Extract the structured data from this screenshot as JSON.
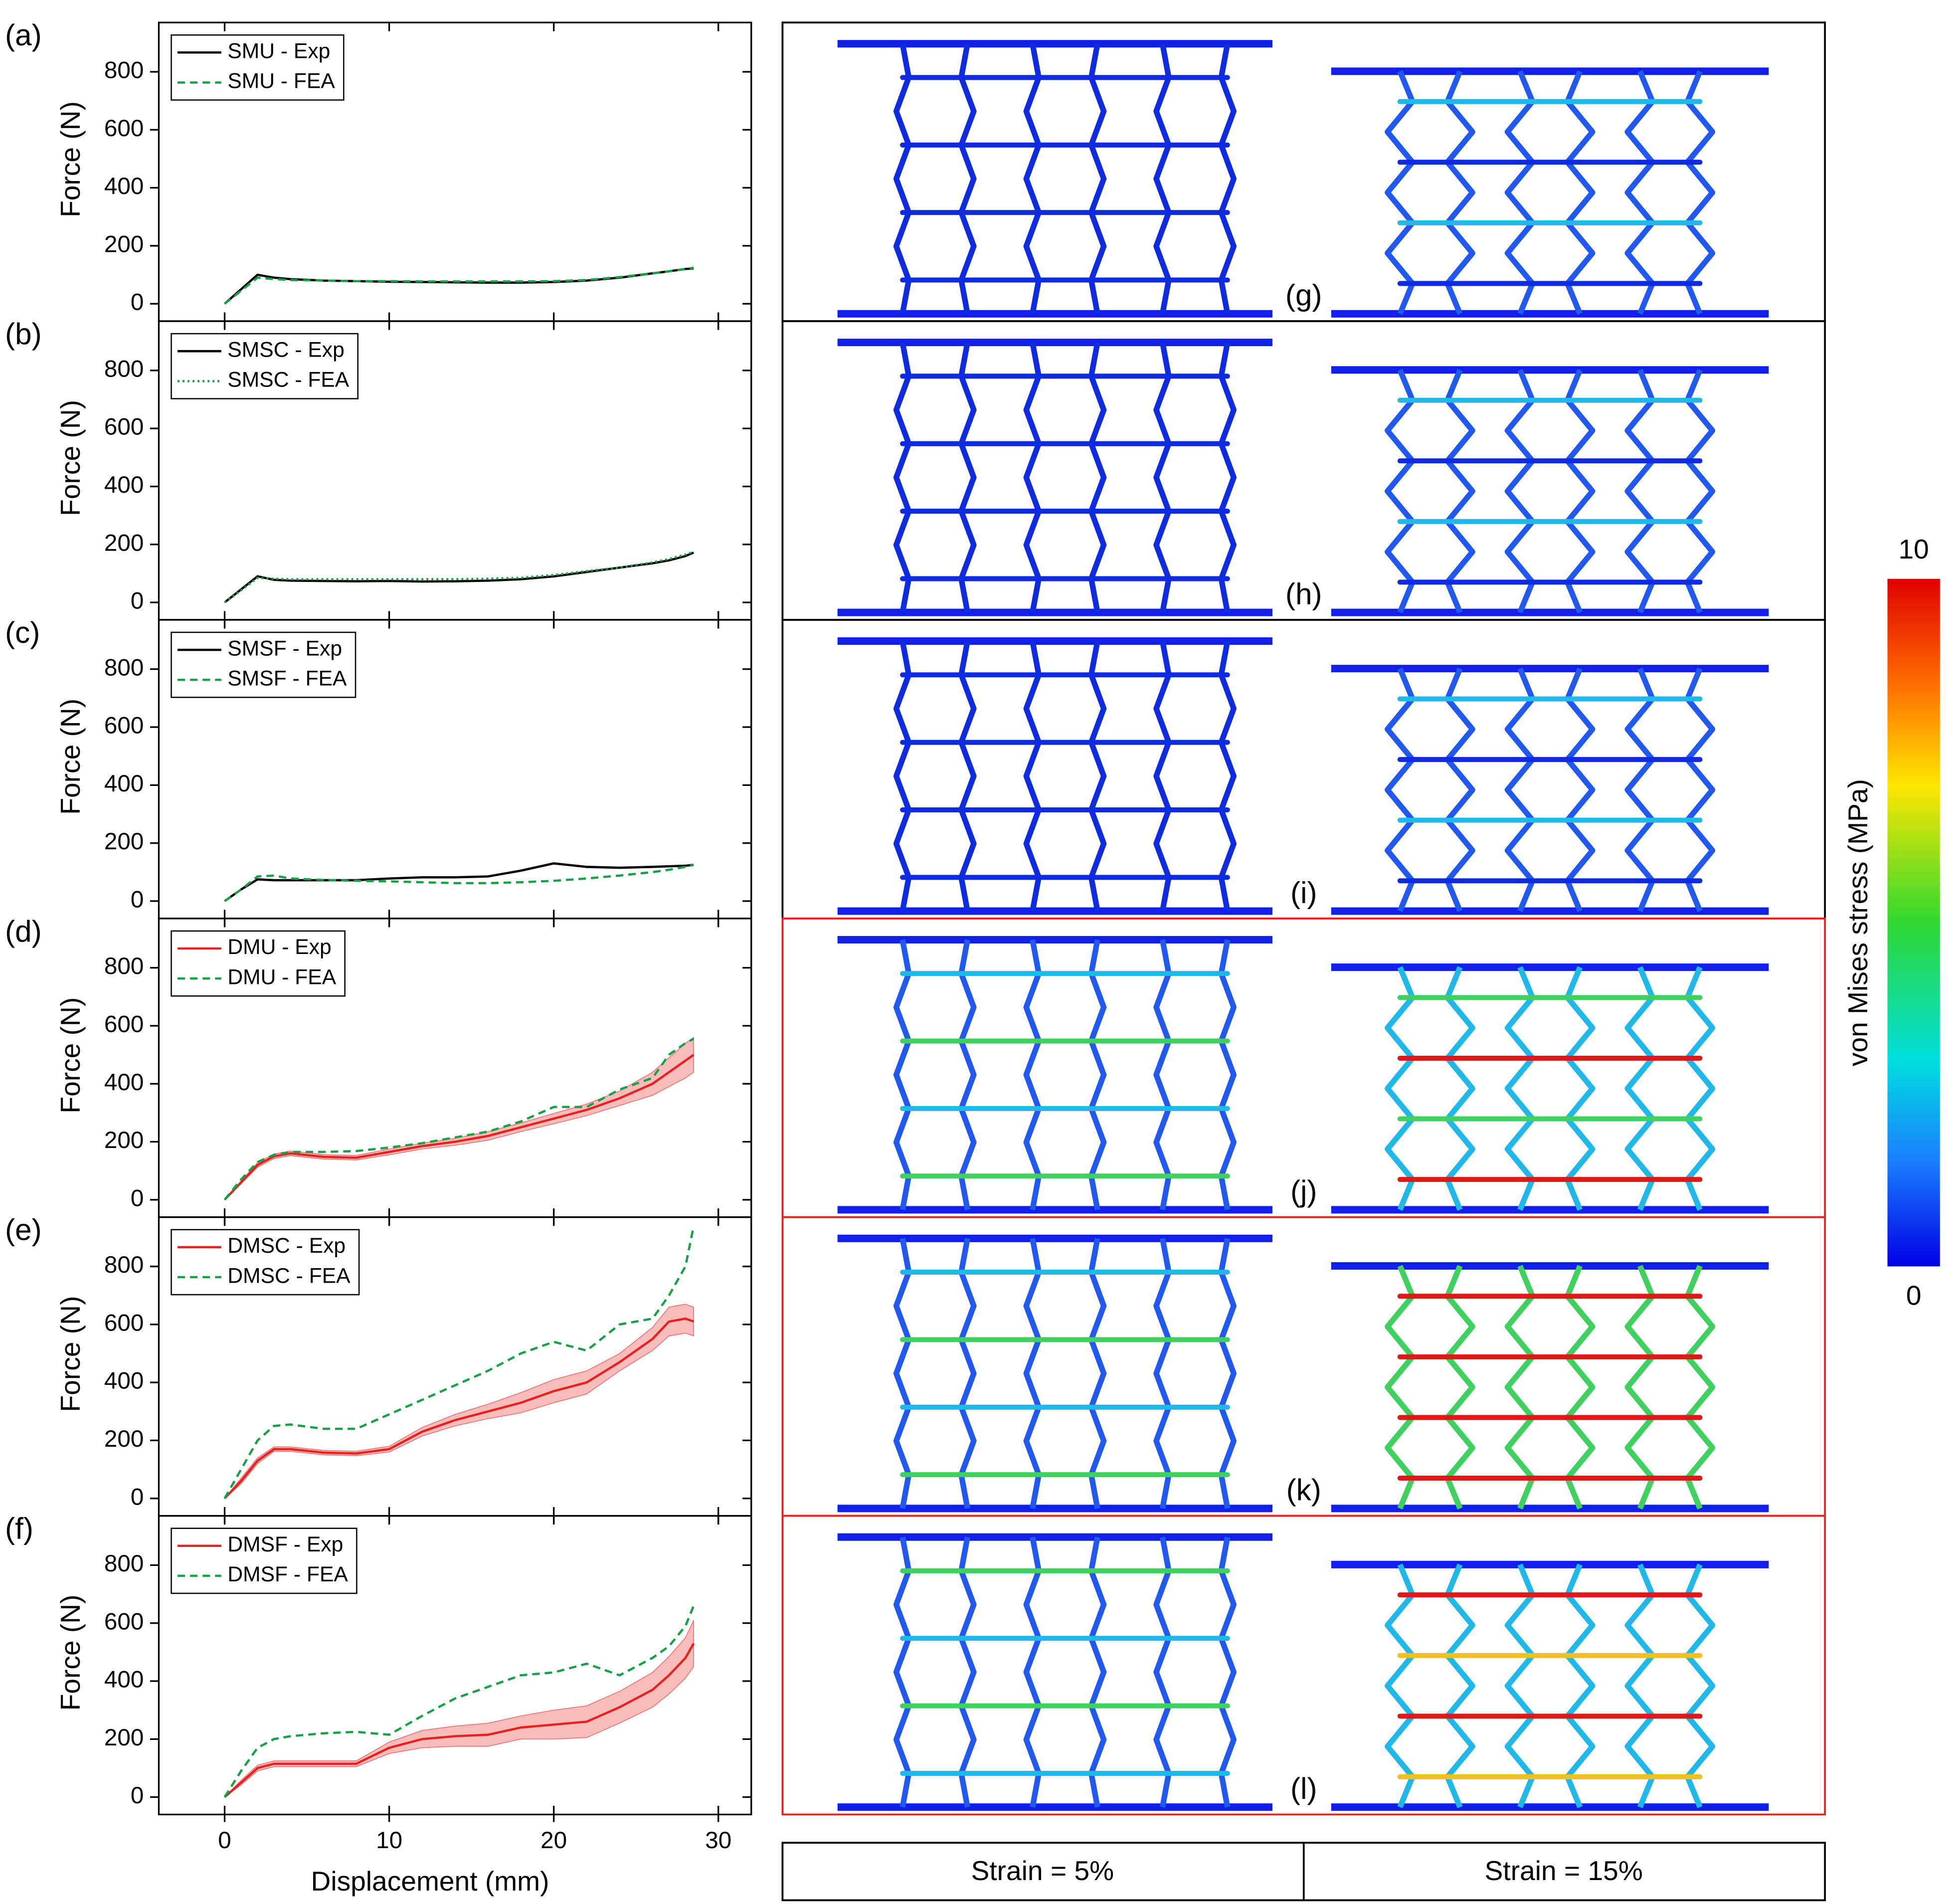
{
  "chart_data": [
    {
      "type": "line",
      "label": "(a)",
      "ylabel": "Force (N)",
      "xlim": [
        -4,
        32
      ],
      "ylim": [
        -60,
        970
      ],
      "xticks": [
        0,
        10,
        20,
        30
      ],
      "yticks": [
        0,
        200,
        400,
        600,
        800
      ],
      "x": [
        0,
        1,
        2,
        3,
        4,
        6,
        8,
        10,
        12,
        14,
        16,
        18,
        20,
        22,
        24,
        26,
        27,
        28,
        28.5
      ],
      "series": [
        {
          "name": "SMU - Exp",
          "color": "#000000",
          "style": "solid",
          "values": [
            0,
            50,
            100,
            90,
            85,
            80,
            78,
            76,
            75,
            74,
            73,
            73,
            75,
            80,
            90,
            105,
            112,
            120,
            122
          ]
        },
        {
          "name": "SMU - FEA",
          "color": "#17a045",
          "style": "dashed",
          "values": [
            0,
            45,
            90,
            85,
            82,
            80,
            78,
            78,
            77,
            77,
            77,
            77,
            78,
            82,
            92,
            105,
            112,
            120,
            124
          ]
        }
      ]
    },
    {
      "type": "line",
      "label": "(b)",
      "ylabel": "Force (N)",
      "xlim": [
        -4,
        32
      ],
      "ylim": [
        -60,
        970
      ],
      "xticks": [
        0,
        10,
        20,
        30
      ],
      "yticks": [
        0,
        200,
        400,
        600,
        800
      ],
      "x": [
        0,
        1,
        2,
        3,
        4,
        6,
        8,
        10,
        12,
        14,
        16,
        18,
        20,
        22,
        24,
        26,
        27,
        28,
        28.5
      ],
      "series": [
        {
          "name": "SMSC - Exp",
          "color": "#000000",
          "style": "solid",
          "values": [
            0,
            45,
            90,
            78,
            75,
            74,
            73,
            74,
            72,
            73,
            75,
            80,
            90,
            105,
            120,
            135,
            145,
            160,
            172
          ]
        },
        {
          "name": "SMSC - FEA",
          "color": "#17a045",
          "style": "dotted",
          "values": [
            0,
            42,
            85,
            82,
            80,
            80,
            80,
            80,
            80,
            80,
            82,
            85,
            95,
            108,
            120,
            138,
            150,
            165,
            175
          ]
        }
      ]
    },
    {
      "type": "line",
      "label": "(c)",
      "ylabel": "Force (N)",
      "xlim": [
        -4,
        32
      ],
      "ylim": [
        -60,
        970
      ],
      "xticks": [
        0,
        10,
        20,
        30
      ],
      "yticks": [
        0,
        200,
        400,
        600,
        800
      ],
      "x": [
        0,
        1,
        2,
        3,
        4,
        6,
        8,
        10,
        12,
        14,
        16,
        18,
        20,
        22,
        24,
        26,
        27,
        28,
        28.5
      ],
      "series": [
        {
          "name": "SMSF - Exp",
          "color": "#000000",
          "style": "solid",
          "values": [
            0,
            40,
            75,
            72,
            72,
            72,
            72,
            78,
            82,
            82,
            85,
            105,
            130,
            118,
            115,
            118,
            120,
            122,
            125
          ]
        },
        {
          "name": "SMSF - FEA",
          "color": "#17a045",
          "style": "dashed",
          "values": [
            0,
            40,
            85,
            88,
            78,
            73,
            70,
            68,
            65,
            62,
            62,
            65,
            70,
            78,
            88,
            100,
            108,
            118,
            125
          ]
        }
      ]
    },
    {
      "type": "line",
      "label": "(d)",
      "ylabel": "Force (N)",
      "xlim": [
        -4,
        32
      ],
      "ylim": [
        -60,
        970
      ],
      "xticks": [
        0,
        10,
        20,
        30
      ],
      "yticks": [
        0,
        200,
        400,
        600,
        800
      ],
      "x": [
        0,
        1,
        2,
        3,
        4,
        6,
        8,
        10,
        12,
        14,
        16,
        18,
        20,
        22,
        24,
        26,
        27,
        28,
        28.5
      ],
      "series": [
        {
          "name": "DMU - Exp",
          "color": "#e8201e",
          "style": "solid",
          "values": [
            0,
            60,
            120,
            150,
            160,
            148,
            145,
            165,
            185,
            200,
            220,
            250,
            280,
            310,
            350,
            400,
            440,
            480,
            500
          ],
          "errors": [
            0,
            5,
            8,
            8,
            8,
            8,
            8,
            10,
            10,
            12,
            15,
            15,
            18,
            20,
            25,
            40,
            50,
            60,
            60
          ]
        },
        {
          "name": "DMU - FEA",
          "color": "#17a045",
          "style": "dashed",
          "values": [
            0,
            70,
            130,
            155,
            165,
            165,
            168,
            180,
            195,
            215,
            235,
            270,
            320,
            320,
            380,
            420,
            500,
            540,
            555
          ]
        }
      ]
    },
    {
      "type": "line",
      "label": "(e)",
      "ylabel": "Force (N)",
      "xlim": [
        -4,
        32
      ],
      "ylim": [
        -60,
        970
      ],
      "xticks": [
        0,
        10,
        20,
        30
      ],
      "yticks": [
        0,
        200,
        400,
        600,
        800
      ],
      "x": [
        0,
        1,
        2,
        3,
        4,
        6,
        8,
        10,
        12,
        14,
        16,
        18,
        20,
        22,
        24,
        26,
        27,
        28,
        28.5
      ],
      "series": [
        {
          "name": "DMSC - Exp",
          "color": "#e8201e",
          "style": "solid",
          "values": [
            0,
            60,
            130,
            170,
            170,
            158,
            155,
            170,
            230,
            270,
            300,
            330,
            370,
            400,
            470,
            550,
            610,
            620,
            610
          ],
          "errors": [
            0,
            10,
            10,
            8,
            8,
            8,
            8,
            10,
            15,
            20,
            25,
            35,
            40,
            40,
            30,
            40,
            50,
            50,
            50
          ]
        },
        {
          "name": "DMSC - FEA",
          "color": "#17a045",
          "style": "dashed",
          "values": [
            0,
            100,
            200,
            250,
            255,
            240,
            240,
            290,
            340,
            390,
            440,
            500,
            540,
            510,
            600,
            620,
            700,
            800,
            940
          ]
        }
      ]
    },
    {
      "type": "line",
      "label": "(f)",
      "ylabel": "Force (N)",
      "xlabel": "Displacement (mm)",
      "xlim": [
        -4,
        32
      ],
      "ylim": [
        -60,
        970
      ],
      "xticks": [
        0,
        10,
        20,
        30
      ],
      "yticks": [
        0,
        200,
        400,
        600,
        800
      ],
      "x": [
        0,
        1,
        2,
        3,
        4,
        6,
        8,
        10,
        12,
        14,
        16,
        18,
        20,
        22,
        24,
        26,
        27,
        28,
        28.5
      ],
      "series": [
        {
          "name": "DMSF - Exp",
          "color": "#e8201e",
          "style": "solid",
          "values": [
            0,
            50,
            100,
            115,
            115,
            115,
            115,
            170,
            200,
            210,
            215,
            240,
            250,
            260,
            310,
            370,
            420,
            480,
            530
          ],
          "errors": [
            0,
            8,
            10,
            10,
            10,
            10,
            10,
            20,
            30,
            35,
            40,
            40,
            50,
            55,
            55,
            60,
            65,
            70,
            80
          ]
        },
        {
          "name": "DMSF - FEA",
          "color": "#17a045",
          "style": "dashed",
          "values": [
            0,
            90,
            170,
            200,
            210,
            220,
            225,
            215,
            280,
            340,
            380,
            420,
            430,
            460,
            420,
            480,
            520,
            590,
            660
          ]
        }
      ]
    }
  ],
  "fea": {
    "panel_labels": [
      "(g)",
      "(h)",
      "(i)",
      "(j)",
      "(k)",
      "(l)"
    ],
    "strain_labels": [
      "Strain = 5%",
      "Strain = 15%"
    ]
  },
  "colorbar": {
    "label": "von Mises stress (MPa)",
    "lim": [
      0,
      10
    ],
    "ticks": [
      0,
      10
    ]
  }
}
